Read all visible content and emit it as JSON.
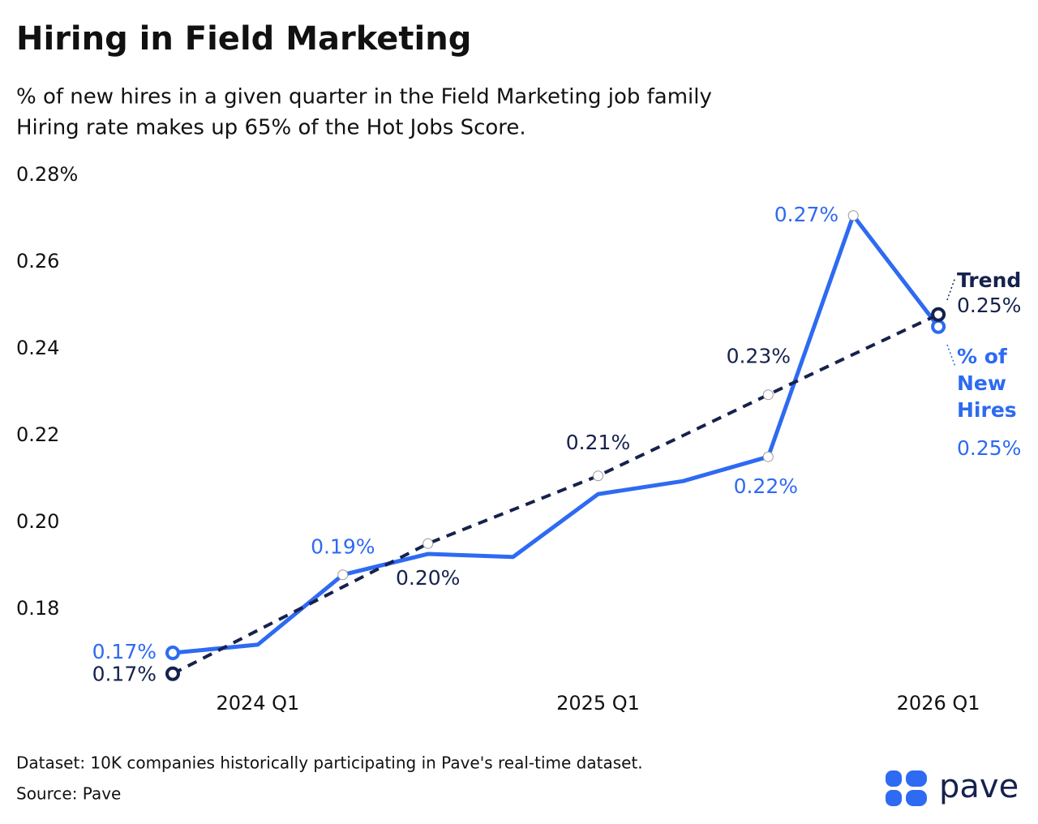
{
  "chart_data": {
    "type": "line",
    "title": "Hiring in Field Marketing",
    "subtitle": [
      "% of new hires in a given quarter in the Field Marketing job family",
      "Hiring rate makes up 65% of the Hot Jobs Score."
    ],
    "categories": [
      null,
      "2024 Q1",
      null,
      null,
      null,
      "2025 Q1",
      null,
      null,
      null,
      "2026 Q1"
    ],
    "series": [
      {
        "name": "% of New Hires",
        "color": "#2e6af2",
        "values": [
          0.1699,
          0.1718,
          0.1879,
          0.1927,
          0.192,
          0.2065,
          0.2095,
          0.2151,
          0.2707,
          0.2451
        ],
        "value_labels": [
          "0.17%",
          null,
          "0.19%",
          null,
          null,
          null,
          null,
          "0.22%",
          "0.27%",
          "0.25%"
        ]
      },
      {
        "name": "Trend",
        "color": "#16224d",
        "dashed": true,
        "values": [
          0.1651,
          0.1751,
          0.1851,
          0.1951,
          0.2029,
          0.2107,
          0.22,
          0.2294,
          0.2387,
          0.2479
        ],
        "value_labels": [
          "0.17%",
          null,
          null,
          "0.20%",
          null,
          "0.21%",
          null,
          "0.23%",
          null,
          "0.25%"
        ]
      }
    ],
    "ylim": [
      0.16,
      0.28
    ],
    "yticks": [
      0.18,
      {
        "value": 0.2,
        "label": "0.20"
      },
      0.22,
      0.24,
      0.26,
      {
        "value": 0.28,
        "label": "0.28%"
      }
    ]
  },
  "footer": {
    "dataset": "Dataset: 10K companies historically participating in Pave's real-time dataset.",
    "source": "Source: Pave"
  },
  "logo": "pave"
}
